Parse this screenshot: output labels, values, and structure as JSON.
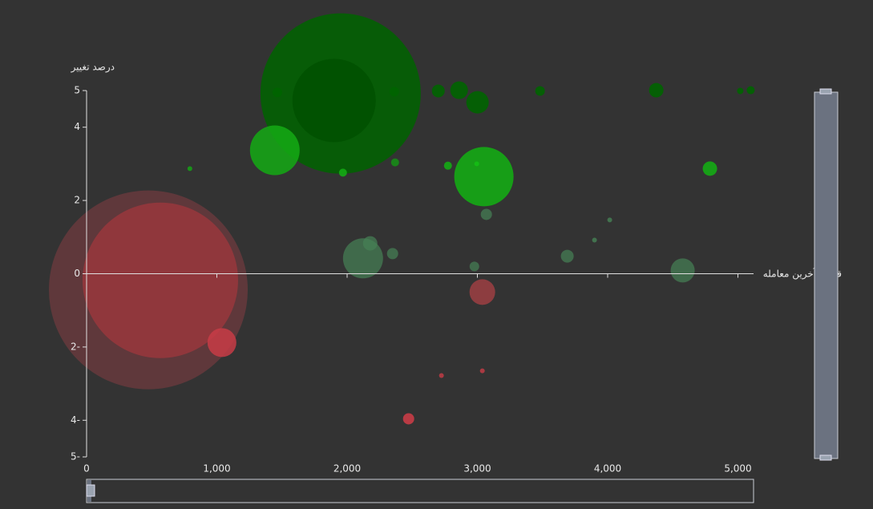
{
  "chart_data": {
    "type": "bubble",
    "x_label": "قیمت آخرین معامله",
    "y_label": "درصد تغییر",
    "xlim": [
      0,
      5120
    ],
    "xticks": [
      0,
      {
        "value": 1000,
        "label": "1,000"
      },
      {
        "value": 2000,
        "label": "2,000"
      },
      {
        "value": 3000,
        "label": "3,000"
      },
      {
        "value": 4000,
        "label": "4,000"
      },
      {
        "value": 5000,
        "label": "5,000"
      }
    ],
    "ylim": [
      -5,
      5
    ],
    "yticks": [
      {
        "value": -5,
        "label": "5-"
      },
      {
        "value": -4,
        "label": "4-"
      },
      {
        "value": -2,
        "label": "2-"
      },
      0,
      2,
      4,
      5
    ],
    "x": [
      474,
      566,
      1950,
      1900,
      1445,
      3050,
      2122,
      1039,
      3038,
      3001,
      4576,
      2860,
      4373,
      4785,
      2177,
      2700,
      3690,
      2349,
      3069,
      2472,
      2977,
      3481,
      2362,
      1464,
      5098,
      5018,
      1968,
      2774,
      2368,
      793,
      2995,
      4016,
      3899,
      2724,
      3038
    ],
    "y": [
      -0.44,
      -0.18,
      4.92,
      4.73,
      3.37,
      2.65,
      0.42,
      -1.88,
      -0.5,
      4.68,
      0.09,
      5.01,
      5.01,
      2.87,
      0.83,
      4.99,
      0.48,
      0.55,
      1.62,
      -3.96,
      0.2,
      4.99,
      4.97,
      4.95,
      5.01,
      4.99,
      2.76,
      2.95,
      3.04,
      2.87,
      3.0,
      1.47,
      0.92,
      -2.78,
      -2.65
    ],
    "sizes": [
      124,
      97,
      100,
      52,
      31,
      37,
      25,
      18,
      16,
      14,
      15,
      11,
      9,
      9,
      9,
      8,
      8,
      7,
      7,
      7,
      6,
      6,
      6,
      6,
      5,
      4,
      5,
      5,
      5,
      3,
      3,
      3,
      3,
      3,
      3
    ],
    "colors": [
      "rgba(200,70,80,0.3)",
      "rgba(160,55,62,0.75)",
      "rgba(0,100,0,0.85)",
      "rgba(0,80,0,0.8)",
      "rgba(20,170,20,0.85)",
      "rgba(20,170,20,0.9)",
      "rgba(70,130,85,0.7)",
      "rgba(200,60,70,0.85)",
      "rgba(180,65,70,0.7)",
      "rgba(0,100,0,0.9)",
      "rgba(70,130,85,0.7)",
      "rgba(0,100,0,0.9)",
      "rgba(0,100,0,0.9)",
      "rgba(20,170,20,0.9)",
      "rgba(70,130,85,0.7)",
      "rgba(0,100,0,0.9)",
      "rgba(70,130,85,0.7)",
      "rgba(70,130,85,0.7)",
      "rgba(70,130,85,0.7)",
      "rgba(200,60,70,0.9)",
      "rgba(70,130,85,0.7)",
      "rgba(0,100,0,0.9)",
      "rgba(0,100,0,0.9)",
      "rgba(0,100,0,0.9)",
      "rgba(0,100,0,0.9)",
      "rgba(0,100,0,0.9)",
      "rgba(20,170,20,0.9)",
      "rgba(20,170,20,0.9)",
      "rgba(20,150,20,0.8)",
      "rgba(20,170,20,0.8)",
      "rgba(20,190,20,0.9)",
      "rgba(70,130,85,0.8)",
      "rgba(70,130,85,0.8)",
      "rgba(200,60,70,0.8)",
      "rgba(200,60,70,0.8)"
    ]
  }
}
